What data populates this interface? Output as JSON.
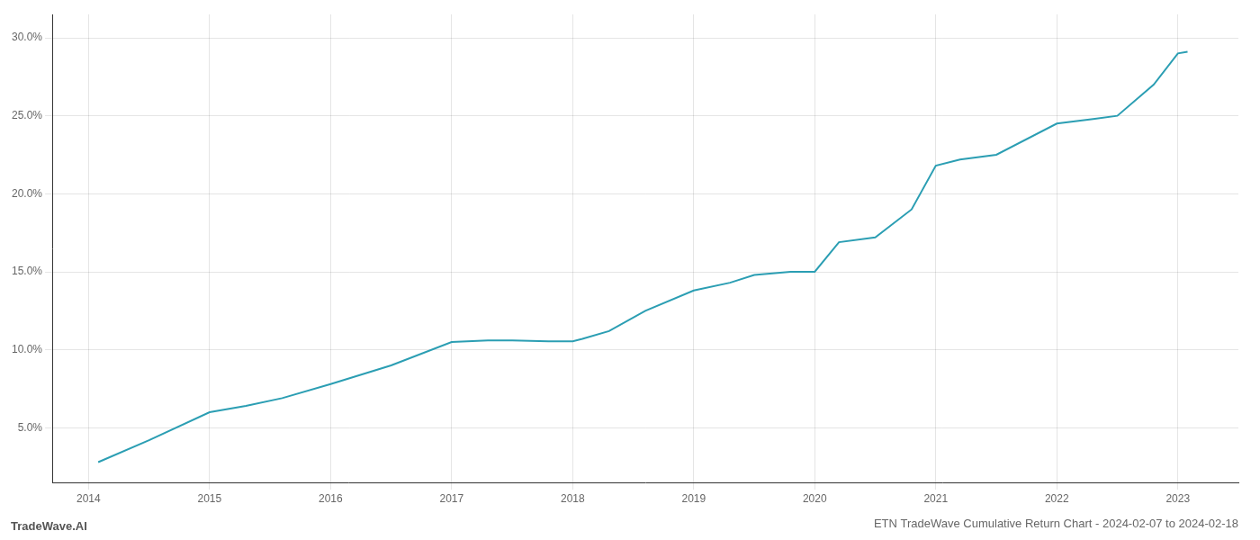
{
  "chart_data": {
    "type": "line",
    "title": "ETN TradeWave Cumulative Return Chart - 2024-02-07 to 2024-02-18",
    "annotation": "TradeWave.AI",
    "x": [
      2014.08,
      2014.5,
      2015.0,
      2015.3,
      2015.6,
      2016.0,
      2016.5,
      2017.0,
      2017.3,
      2017.5,
      2017.8,
      2018.0,
      2018.08,
      2018.3,
      2018.6,
      2019.0,
      2019.3,
      2019.5,
      2019.8,
      2020.0,
      2020.2,
      2020.5,
      2020.8,
      2021.0,
      2021.2,
      2021.5,
      2022.0,
      2022.3,
      2022.5,
      2022.8,
      2023.0,
      2023.08
    ],
    "values": [
      2.8,
      4.2,
      6.0,
      6.4,
      6.9,
      7.8,
      9.0,
      10.5,
      10.6,
      10.6,
      10.55,
      10.55,
      10.7,
      11.2,
      12.5,
      13.8,
      14.3,
      14.8,
      15.0,
      15.0,
      16.9,
      17.2,
      19.0,
      21.8,
      22.2,
      22.5,
      24.5,
      24.8,
      25.0,
      27.0,
      29.0,
      29.1
    ],
    "color": "#2b9eb3",
    "xlim": [
      2013.7,
      2023.5
    ],
    "ylim": [
      1.5,
      31.5
    ],
    "xticks": [
      2014,
      2015,
      2016,
      2017,
      2018,
      2019,
      2020,
      2021,
      2022,
      2023
    ],
    "yticks": [
      {
        "value": 5.0,
        "label": "5.0%"
      },
      {
        "value": 10.0,
        "label": "10.0%"
      },
      {
        "value": 15.0,
        "label": "15.0%"
      },
      {
        "value": 20.0,
        "label": "20.0%"
      },
      {
        "value": 25.0,
        "label": "25.0%"
      },
      {
        "value": 30.0,
        "label": "30.0%"
      }
    ],
    "grid": true
  }
}
